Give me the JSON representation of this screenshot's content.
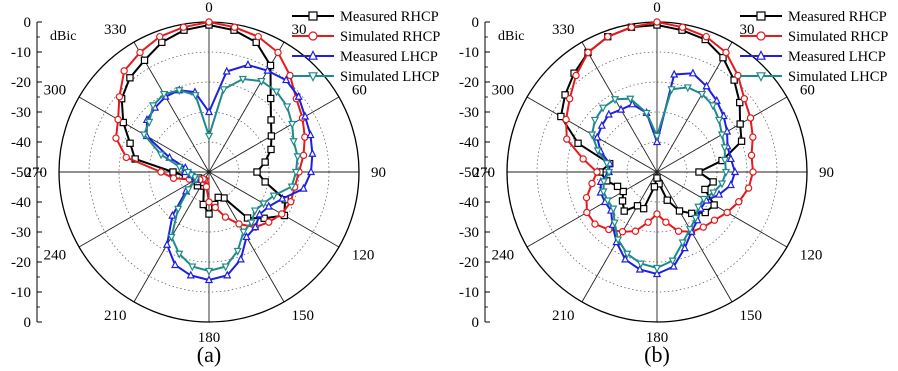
{
  "chart_data": [
    {
      "type": "polar-line",
      "panel_label": "(a)",
      "unit_label": "dBic",
      "r_ticks": [
        "0",
        "-10",
        "-20",
        "-30",
        "-40",
        "-50",
        "-40",
        "-30",
        "-20",
        "-10",
        "0"
      ],
      "r_range": [
        -50,
        0
      ],
      "angle_ticks": [
        "0",
        "30",
        "60",
        "90",
        "120",
        "150",
        "180",
        "210",
        "240",
        "270",
        "300",
        "330"
      ],
      "angles": [
        0,
        10,
        20,
        30,
        40,
        50,
        60,
        70,
        80,
        90,
        100,
        110,
        120,
        130,
        140,
        150,
        160,
        170,
        180,
        190,
        200,
        210,
        220,
        230,
        240,
        250,
        260,
        270,
        280,
        290,
        300,
        310,
        320,
        330,
        340,
        350
      ],
      "series": [
        {
          "name": "Measured RHCP",
          "color": "#000000",
          "marker": "square",
          "values": [
            -1,
            -2,
            -4,
            -9,
            -18,
            -23,
            -26,
            -28,
            -31,
            -34,
            -31,
            -23,
            -21,
            -26,
            -30,
            -40,
            -41,
            -39,
            -36,
            -39,
            -45,
            -46,
            -44,
            -45,
            -46,
            -44,
            -42,
            -38,
            -25,
            -22,
            -17,
            -12,
            -9,
            -7,
            -4,
            -2
          ]
        },
        {
          "name": "Simulated RHCP",
          "color": "#e41a1c",
          "marker": "circle",
          "values": [
            0,
            -1,
            -2,
            -4,
            -8,
            -12,
            -14,
            -16,
            -18,
            -20,
            -21,
            -21,
            -22,
            -24,
            -26,
            -30,
            -34,
            -38,
            -40,
            -45,
            -47,
            -47,
            -47,
            -46,
            -45,
            -43,
            -38,
            -34,
            -22,
            -17,
            -15,
            -11,
            -6,
            -4,
            -2,
            -1
          ]
        },
        {
          "name": "Measured LHCP",
          "color": "#1f1fe0",
          "marker": "triangle-up",
          "values": [
            -30,
            -16,
            -12,
            -11,
            -10,
            -11,
            -13,
            -14,
            -15,
            -16,
            -18,
            -24,
            -27,
            -28,
            -26,
            -25,
            -19,
            -15,
            -14,
            -15,
            -17,
            -22,
            -31,
            -40,
            -45,
            -45,
            -44,
            -42,
            -42,
            -36,
            -26,
            -23,
            -22,
            -21,
            -21,
            -23
          ]
        },
        {
          "name": "Simulated LHCP",
          "color": "#1f8a8a",
          "marker": "triangle-down",
          "values": [
            -38,
            -22,
            -17,
            -15,
            -15,
            -16,
            -18,
            -20,
            -20,
            -21,
            -22,
            -27,
            -29,
            -30,
            -28,
            -27,
            -22,
            -18,
            -17,
            -18,
            -21,
            -25,
            -34,
            -41,
            -45,
            -45,
            -44,
            -43,
            -40,
            -33,
            -25,
            -24,
            -21,
            -20,
            -21,
            -24
          ]
        }
      ],
      "legend": "top-right"
    },
    {
      "type": "polar-line",
      "panel_label": "(b)",
      "unit_label": "dBic",
      "r_ticks": [
        "0",
        "-10",
        "-20",
        "-30",
        "-40",
        "-50",
        "-40",
        "-30",
        "-20",
        "-10",
        "0"
      ],
      "r_range": [
        -50,
        0
      ],
      "angle_ticks": [
        "0",
        "30",
        "60",
        "90",
        "120",
        "150",
        "180",
        "210",
        "240",
        "270",
        "300",
        "330"
      ],
      "angles": [
        0,
        10,
        20,
        30,
        40,
        50,
        60,
        70,
        80,
        90,
        100,
        110,
        120,
        130,
        140,
        150,
        160,
        170,
        180,
        190,
        200,
        210,
        220,
        230,
        240,
        250,
        260,
        270,
        280,
        290,
        300,
        310,
        320,
        330,
        340,
        350
      ],
      "series": [
        {
          "name": "Measured RHCP",
          "color": "#000000",
          "marker": "square",
          "values": [
            -1,
            -2,
            -3,
            -6,
            -10,
            -14,
            -18,
            -20,
            -28,
            -36,
            -31,
            -33,
            -28,
            -29,
            -32,
            -35,
            -40,
            -46,
            -48,
            -45,
            -37,
            -37,
            -33,
            -35,
            -37,
            -36,
            -33,
            -31,
            -34,
            -22,
            -13,
            -10,
            -7,
            -4,
            -2,
            -1
          ]
        },
        {
          "name": "Simulated RHCP",
          "color": "#e41a1c",
          "marker": "circle",
          "values": [
            0,
            -1,
            -2,
            -4,
            -8,
            -12,
            -14,
            -16,
            -18,
            -18,
            -19,
            -21,
            -23,
            -25,
            -26,
            -27,
            -29,
            -33,
            -36,
            -33,
            -29,
            -27,
            -25,
            -23,
            -23,
            -25,
            -28,
            -30,
            -25,
            -18,
            -15,
            -12,
            -8,
            -4,
            -2,
            -1
          ]
        },
        {
          "name": "Measured LHCP",
          "color": "#1f1fe0",
          "marker": "triangle-up",
          "values": [
            -40,
            -17,
            -15,
            -17,
            -19,
            -21,
            -23,
            -25,
            -25,
            -24,
            -25,
            -28,
            -31,
            -31,
            -29,
            -27,
            -23,
            -18,
            -16,
            -17,
            -19,
            -23,
            -27,
            -30,
            -30,
            -30,
            -31,
            -34,
            -34,
            -30,
            -27,
            -26,
            -25,
            -26,
            -26,
            -30
          ]
        },
        {
          "name": "Simulated LHCP",
          "color": "#1f8a8a",
          "marker": "triangle-down",
          "values": [
            -38,
            -22,
            -20,
            -20,
            -21,
            -23,
            -25,
            -26,
            -27,
            -27,
            -28,
            -30,
            -32,
            -32,
            -30,
            -28,
            -25,
            -20,
            -18,
            -19,
            -21,
            -24,
            -28,
            -31,
            -31,
            -31,
            -32,
            -34,
            -33,
            -29,
            -25,
            -23,
            -22,
            -22,
            -24,
            -30
          ]
        }
      ],
      "legend": "top-right"
    }
  ]
}
